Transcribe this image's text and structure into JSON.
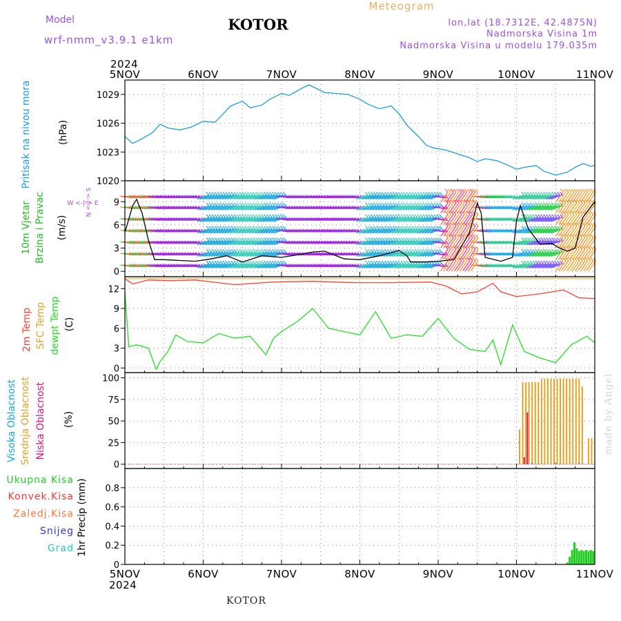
{
  "header": {
    "model_label": "Model",
    "model_name": "wrf-nmm_v3.9.1  e1km",
    "station": "KOTOR",
    "chart_kind": "Meteogram",
    "lonlat": "lon,lat (18.7312E, 42.4875N)",
    "elevation": "Nadmorska Visina 1m",
    "model_elevation": "Nadmorska Visina u modelu 179.035m",
    "credit": "made by Angel",
    "footer_station": "KOTOR"
  },
  "colors": {
    "pressure": "#1a9de0",
    "wind_label": "#22bb22",
    "temp2m": "#ff4030",
    "sfc": "#e8a020",
    "dew": "#22dd22",
    "high_cloud": "#11aadd",
    "mid_cloud": "#e8a020",
    "low_cloud": "#dd1177",
    "total_precip": "#22cc22",
    "conv_precip": "#ff3333",
    "frz_precip": "#ff7733",
    "snow": "#3333dd",
    "hail": "#22ccbb",
    "purple": "#a050d8"
  },
  "time_axis": {
    "year": "2024",
    "labels": [
      "5NOV",
      "6NOV",
      "7NOV",
      "8NOV",
      "9NOV",
      "10NOV",
      "11NOV"
    ]
  },
  "panels": {
    "pressure": {
      "label": "Pritisak na nivou mora",
      "unit": "(hPa)"
    },
    "wind": {
      "label1": "10m Vjetar",
      "label2": "Brzina i Pravac",
      "unit": "(m/s)",
      "compass_we": "W <-|-> E",
      "compass_sn": "S <-|-> N"
    },
    "temp": {
      "label_2m": "2m Temp",
      "label_sfc": "SFC Temp",
      "label_dew": "dewpt Temp",
      "unit": "(C)"
    },
    "cloud": {
      "label_high": "Visoka Oblacnost",
      "label_mid": "Srednja Oblacnost",
      "label_low": "Niska Oblacnost",
      "unit": "(%)"
    },
    "precip": {
      "label_total": "Ukupna Kisa",
      "label_conv": "Konvek.Kisa",
      "label_frz": "Zaledj.Kisa",
      "label_snow": "Snijeg",
      "label_hail": "Grad",
      "axis_label": "1hr Precip (mm)"
    }
  },
  "chart_data": [
    {
      "type": "line",
      "panel": "pressure",
      "ylabel": "(hPa)",
      "ylim": [
        1020,
        1030.5
      ],
      "yticks": [
        1020,
        1023,
        1026,
        1029
      ],
      "grid": true,
      "series": [
        {
          "name": "Pritisak na nivou mora",
          "x": [
            0,
            0.1,
            0.2,
            0.35,
            0.45,
            0.55,
            0.7,
            0.85,
            1.0,
            1.15,
            1.2,
            1.35,
            1.5,
            1.6,
            1.75,
            1.85,
            2.0,
            2.1,
            2.25,
            2.35,
            2.45,
            2.55,
            2.7,
            2.85,
            3.0,
            3.1,
            3.25,
            3.4,
            3.5,
            3.6,
            3.75,
            3.85,
            3.95,
            4.1,
            4.25,
            4.4,
            4.5,
            4.6,
            4.75,
            4.9,
            5.0,
            5.1,
            5.25,
            5.35,
            5.5,
            5.55,
            5.65,
            5.75,
            5.85,
            5.95,
            6.0
          ],
          "values": [
            1024.6,
            1023.9,
            1024.3,
            1025.0,
            1025.9,
            1025.5,
            1025.3,
            1025.6,
            1026.2,
            1026.1,
            1026.5,
            1027.8,
            1028.3,
            1027.6,
            1027.9,
            1028.5,
            1029.1,
            1028.9,
            1029.6,
            1030.0,
            1029.6,
            1029.2,
            1029.1,
            1029.0,
            1028.5,
            1028.0,
            1027.5,
            1027.8,
            1027.0,
            1025.8,
            1024.6,
            1023.7,
            1023.4,
            1023.2,
            1022.8,
            1022.4,
            1022.0,
            1022.3,
            1022.1,
            1021.6,
            1021.2,
            1021.4,
            1021.6,
            1021.0,
            1020.6,
            1020.7,
            1020.9,
            1021.4,
            1021.8,
            1021.5,
            1021.6
          ]
        }
      ]
    },
    {
      "type": "line",
      "panel": "wind",
      "ylabel": "(m/s)",
      "ylim": [
        -0.7,
        11.7
      ],
      "yticks": [
        0,
        3,
        6,
        9
      ],
      "grid": true,
      "series": [
        {
          "name": "10m Vjetar",
          "x": [
            0,
            0.1,
            0.15,
            0.22,
            0.3,
            0.38,
            0.5,
            0.7,
            0.9,
            1.1,
            1.3,
            1.5,
            1.75,
            2.0,
            2.25,
            2.4,
            2.55,
            2.8,
            3.0,
            3.25,
            3.5,
            3.6,
            3.65,
            3.85,
            4.0,
            4.2,
            4.4,
            4.5,
            4.55,
            4.6,
            4.8,
            4.95,
            5.0,
            5.05,
            5.15,
            5.3,
            5.45,
            5.55,
            5.65,
            5.75,
            5.85,
            6.0
          ],
          "values": [
            5.0,
            8.5,
            9.3,
            7.5,
            4.0,
            1.5,
            1.5,
            1.4,
            1.3,
            1.6,
            2.0,
            1.2,
            2.0,
            1.8,
            2.2,
            2.5,
            2.6,
            1.6,
            1.5,
            2.0,
            2.7,
            2.0,
            1.2,
            1.2,
            1.3,
            1.5,
            5.0,
            8.8,
            7.5,
            1.8,
            1.3,
            1.8,
            6.5,
            8.5,
            5.5,
            3.5,
            3.6,
            3.0,
            2.6,
            3.0,
            7.0,
            9.0
          ]
        }
      ]
    },
    {
      "type": "line",
      "panel": "temp",
      "ylabel": "(C)",
      "ylim": [
        -0.7,
        13.8
      ],
      "yticks": [
        0,
        3,
        6,
        9,
        12
      ],
      "grid": true,
      "series": [
        {
          "name": "2m Temp",
          "x": [
            0,
            0.1,
            0.3,
            0.6,
            0.9,
            1.4,
            1.9,
            2.4,
            2.9,
            3.4,
            3.9,
            4.1,
            4.3,
            4.5,
            4.7,
            4.8,
            5.0,
            5.3,
            5.6,
            5.8,
            6.0
          ],
          "values": [
            13.5,
            12.7,
            13.3,
            13.2,
            13.3,
            12.6,
            13.0,
            13.1,
            12.9,
            12.9,
            13.0,
            12.4,
            11.2,
            11.5,
            12.8,
            11.5,
            10.8,
            11.2,
            11.8,
            10.6,
            10.5
          ]
        },
        {
          "name": "SFC Temp",
          "x": [
            0,
            6
          ],
          "values": [
            13.5,
            13.5
          ]
        },
        {
          "name": "dewpt Temp",
          "x": [
            0,
            0.05,
            0.15,
            0.3,
            0.4,
            0.45,
            0.55,
            0.65,
            0.8,
            1.0,
            1.2,
            1.4,
            1.6,
            1.8,
            1.9,
            2.0,
            2.2,
            2.4,
            2.6,
            2.8,
            3.0,
            3.2,
            3.4,
            3.6,
            3.8,
            4.0,
            4.2,
            4.4,
            4.6,
            4.7,
            4.8,
            4.95,
            5.1,
            5.3,
            5.5,
            5.7,
            5.9,
            6.0
          ],
          "values": [
            11.5,
            3.2,
            3.5,
            3.0,
            -0.2,
            1.0,
            2.5,
            5.0,
            4.0,
            3.8,
            5.2,
            4.5,
            4.8,
            2.0,
            4.5,
            5.5,
            7.0,
            9.0,
            6.0,
            5.5,
            5.0,
            8.5,
            4.5,
            5.0,
            4.8,
            7.5,
            4.5,
            2.8,
            2.5,
            4.2,
            0.5,
            6.5,
            2.5,
            1.5,
            0.8,
            3.5,
            4.8,
            3.8
          ]
        }
      ]
    },
    {
      "type": "bar",
      "panel": "cloud",
      "ylabel": "(%)",
      "ylim": [
        -5,
        106
      ],
      "yticks": [
        0,
        25,
        50,
        75,
        100
      ],
      "grid": true,
      "series": [
        {
          "name": "Srednja Oblacnost",
          "x": [
            5.04,
            5.08,
            5.12,
            5.16,
            5.2,
            5.24,
            5.28,
            5.32,
            5.36,
            5.4,
            5.44,
            5.48,
            5.52,
            5.56,
            5.6,
            5.64,
            5.68,
            5.72,
            5.76,
            5.8,
            5.84,
            5.88,
            5.92,
            5.96
          ],
          "values": [
            40,
            95,
            95,
            95,
            95,
            95,
            95,
            99,
            99,
            99,
            99,
            99,
            99,
            99,
            99,
            99,
            99,
            99,
            99,
            99,
            90,
            0,
            30,
            30
          ]
        },
        {
          "name": "Niska Oblacnost",
          "x": [
            5.1,
            5.14
          ],
          "values": [
            8,
            60
          ]
        },
        {
          "name": "Visoka Oblacnost",
          "x": [
            5.2,
            5.5,
            5.8
          ],
          "values": [
            2,
            2,
            2
          ]
        }
      ]
    },
    {
      "type": "bar",
      "panel": "precip",
      "ylabel": "1hr Precip (mm)",
      "ylim": [
        0,
        1.0
      ],
      "yticks": [
        0,
        0.2,
        0.4,
        0.6,
        0.8
      ],
      "grid": true,
      "series": [
        {
          "name": "Ukupna Kisa",
          "x": [
            5.65,
            5.68,
            5.71,
            5.74,
            5.77,
            5.8,
            5.83,
            5.86,
            5.89,
            5.92,
            5.95,
            5.98
          ],
          "values": [
            0.02,
            0.08,
            0.15,
            0.23,
            0.17,
            0.14,
            0.15,
            0.14,
            0.15,
            0.14,
            0.15,
            0.14
          ]
        }
      ]
    }
  ]
}
